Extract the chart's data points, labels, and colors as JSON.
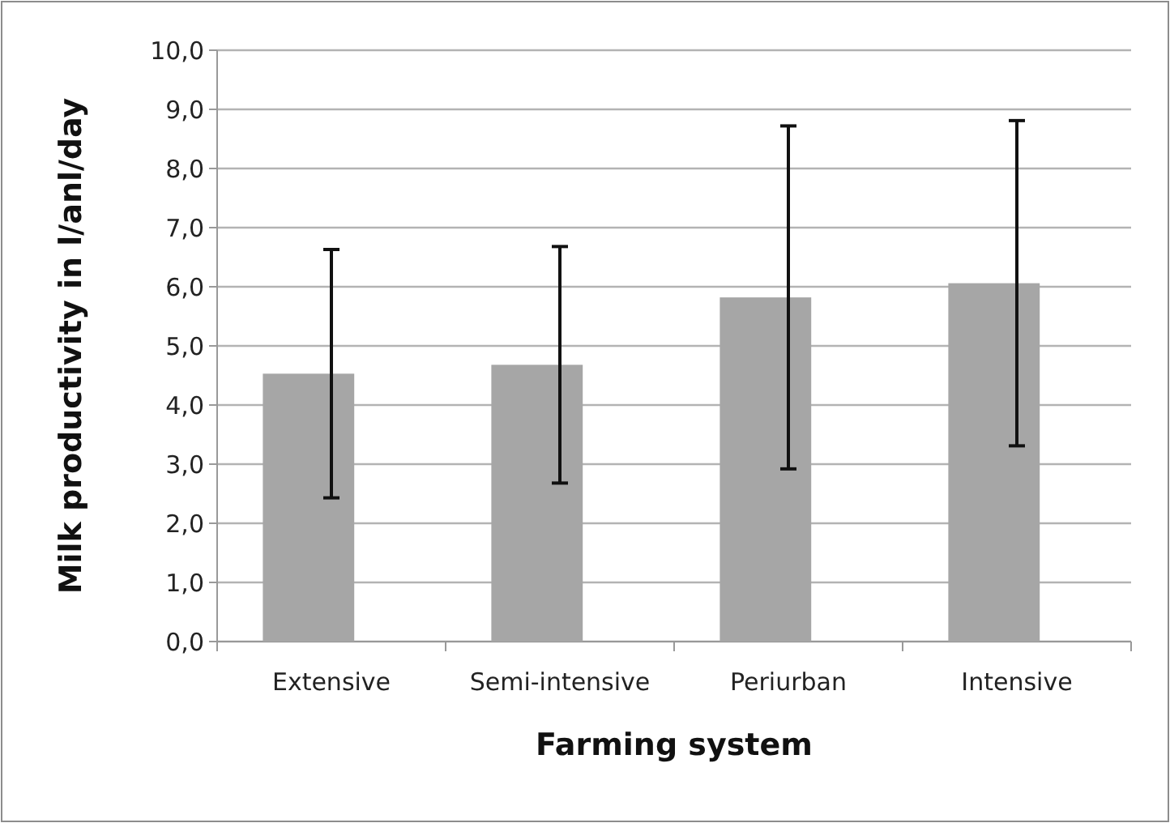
{
  "chart_data": {
    "type": "bar",
    "xlabel": "Farming system",
    "ylabel": "Milk productivity in l/anl/day",
    "categories": [
      "Extensive",
      "Semi-intensive",
      "Periurban",
      "Intensive"
    ],
    "values": [
      4.53,
      4.68,
      5.82,
      6.06
    ],
    "errors": [
      2.1,
      2.0,
      2.9,
      2.75
    ],
    "color": "#a6a6a6",
    "ylim": [
      0,
      10
    ],
    "yticks": [
      {
        "value": 0,
        "label": "0,0"
      },
      {
        "value": 1,
        "label": "1,0"
      },
      {
        "value": 2,
        "label": "2,0"
      },
      {
        "value": 3,
        "label": "3,0"
      },
      {
        "value": 4,
        "label": "4,0"
      },
      {
        "value": 5,
        "label": "5,0"
      },
      {
        "value": 6,
        "label": "6,0"
      },
      {
        "value": 7,
        "label": "7,0"
      },
      {
        "value": 8,
        "label": "8,0"
      },
      {
        "value": 9,
        "label": "9,0"
      },
      {
        "value": 10,
        "label": "10,0"
      }
    ],
    "grid": "y"
  }
}
